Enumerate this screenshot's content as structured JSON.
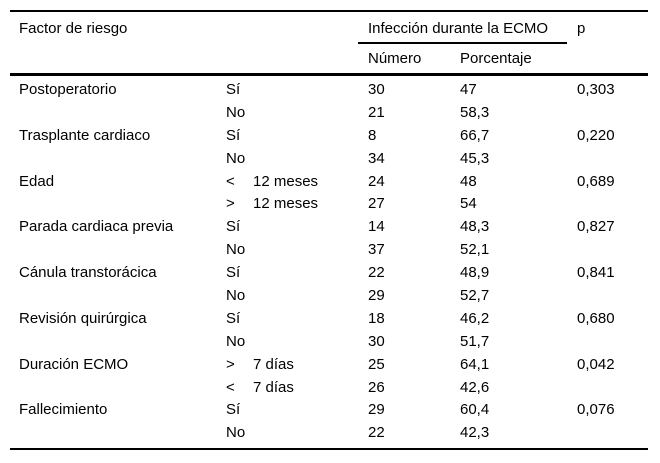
{
  "header": {
    "factor": "Factor de riesgo",
    "infection_group": "Infección durante la ECMO",
    "numero": "Número",
    "porcentaje": "Porcentaje",
    "p": "p"
  },
  "table": {
    "rows": [
      {
        "factor": "Postoperatorio",
        "cond": "Sí",
        "cond_detail": "",
        "numero": "30",
        "porcentaje": "47",
        "p": "0,303"
      },
      {
        "factor": "",
        "cond": "No",
        "cond_detail": "",
        "numero": "21",
        "porcentaje": "58,3",
        "p": ""
      },
      {
        "factor": "Trasplante cardiaco",
        "cond": "Sí",
        "cond_detail": "",
        "numero": "8",
        "porcentaje": "66,7",
        "p": "0,220"
      },
      {
        "factor": "",
        "cond": "No",
        "cond_detail": "",
        "numero": "34",
        "porcentaje": "45,3",
        "p": ""
      },
      {
        "factor": "Edad",
        "cond": "<",
        "cond_detail": "12 meses",
        "numero": "24",
        "porcentaje": "48",
        "p": "0,689"
      },
      {
        "factor": "",
        "cond": ">",
        "cond_detail": "12 meses",
        "numero": "27",
        "porcentaje": "54",
        "p": ""
      },
      {
        "factor": "Parada cardiaca previa",
        "cond": "Sí",
        "cond_detail": "",
        "numero": "14",
        "porcentaje": "48,3",
        "p": "0,827"
      },
      {
        "factor": "",
        "cond": "No",
        "cond_detail": "",
        "numero": "37",
        "porcentaje": "52,1",
        "p": ""
      },
      {
        "factor": "Cánula transtorácica",
        "cond": "Sí",
        "cond_detail": "",
        "numero": "22",
        "porcentaje": "48,9",
        "p": "0,841"
      },
      {
        "factor": "",
        "cond": "No",
        "cond_detail": "",
        "numero": "29",
        "porcentaje": "52,7",
        "p": ""
      },
      {
        "factor": "Revisión quirúrgica",
        "cond": "Sí",
        "cond_detail": "",
        "numero": "18",
        "porcentaje": "46,2",
        "p": "0,680"
      },
      {
        "factor": "",
        "cond": "No",
        "cond_detail": "",
        "numero": "30",
        "porcentaje": "51,7",
        "p": ""
      },
      {
        "factor": "Duración ECMO",
        "cond": ">",
        "cond_detail": "7 días",
        "numero": "25",
        "porcentaje": "64,1",
        "p": "0,042"
      },
      {
        "factor": "",
        "cond": "<",
        "cond_detail": "7 días",
        "numero": "26",
        "porcentaje": "42,6",
        "p": ""
      },
      {
        "factor": "Fallecimiento",
        "cond": "Sí",
        "cond_detail": "",
        "numero": "29",
        "porcentaje": "60,4",
        "p": "0,076"
      },
      {
        "factor": "",
        "cond": "No",
        "cond_detail": "",
        "numero": "22",
        "porcentaje": "42,3",
        "p": ""
      }
    ]
  },
  "colors": {
    "text": "#000000",
    "line": "#000000",
    "background": "#ffffff"
  }
}
